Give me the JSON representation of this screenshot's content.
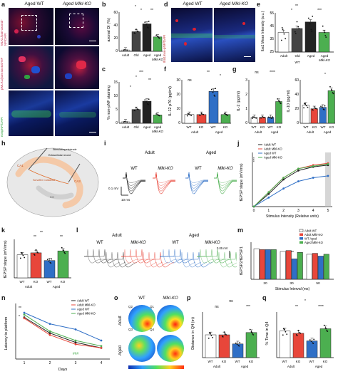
{
  "panel_letters": [
    "a",
    "b",
    "c",
    "d",
    "e",
    "f",
    "g",
    "h",
    "i",
    "j",
    "k",
    "l",
    "m",
    "n",
    "o",
    "p",
    "q"
  ],
  "a": {
    "col1": "Aged WT",
    "col2": "Aged Mlkl-KO",
    "row1_label": "MLKL/pan-axonal-NF/DAPI",
    "row2_label": "pMLKL/pan-axonal-NF",
    "row3_label": "nonpNF/DAPI"
  },
  "d": {
    "col1": "Aged WT",
    "col2": "Aged Mlkl-KO",
    "row_label": "Iba1/non-pNF/DAPI"
  },
  "group_ticks": [
    "Adult",
    "Old",
    "Aged",
    "Aged"
  ],
  "group_sub": "Mlkl-KO",
  "wt_ko": [
    "WT",
    "KO"
  ],
  "adult_aged": [
    "Adult",
    "Aged"
  ],
  "b": {
    "ylabel": "axonal DI (%)",
    "yticks": [
      "0",
      "20",
      "40",
      "60"
    ],
    "stars": [
      "*",
      "*",
      "**"
    ]
  },
  "c": {
    "ylabel": "% non-pNF staining",
    "yticks": [
      "0",
      "5",
      "10",
      "15"
    ],
    "stars": [
      "***",
      "*",
      "**",
      "*"
    ]
  },
  "e": {
    "ylabel": "Iba1 Mean Intensity (a.u.)",
    "yticks": [
      "25",
      "35",
      "45",
      "55"
    ],
    "stars": [
      "**",
      "*",
      "***"
    ],
    "wt": "WT"
  },
  "f": {
    "ylabel": "IL-12 p70 (pg/ml)",
    "yticks": [
      "0",
      "10",
      "20",
      "30"
    ],
    "stars": [
      "**",
      "*"
    ],
    "ns": "ns"
  },
  "g": {
    "ylabel": "IL-2 (pg/ml)",
    "yticks": [
      "0",
      "1",
      "2",
      "3"
    ],
    "stars": [
      "****"
    ],
    "ns": "ns",
    "ylabel2": "IL-10 (pg/ml)",
    "yticks2": [
      "0",
      "20",
      "40",
      "60"
    ],
    "stars2": [
      "*"
    ]
  },
  "h": {
    "stim_label": "Stimulating electrode",
    "rec_label": "Extracellular record",
    "ca1": "CA1",
    "ca3": "CA3",
    "schaffer": "Schaffer Collateral",
    "dg": "DG"
  },
  "i": {
    "group_adult": "Adult",
    "group_aged": "Aged",
    "wt": "WT",
    "ko": "Mlkl-KO",
    "scale_v": "0.1 mV",
    "scale_t": "10 ms"
  },
  "j": {
    "ylabel": "fEPSP slope (mV/ms)",
    "xlabel": "Stimulus Intensity (Relative units)",
    "legend": [
      "Adult WT",
      "Adult Mlkl-KO",
      "Aged WT",
      "Aged Mlkl-KO"
    ],
    "stars": "****"
  },
  "k": {
    "ylabel": "fEPSP slope (mV/ms)",
    "stars": [
      "**",
      "**",
      "**"
    ]
  },
  "l": {
    "group_adult": "Adult",
    "group_aged": "Aged",
    "wt": "WT",
    "ko": "Mlkl-KO",
    "scale": "0.05 mV"
  },
  "m": {
    "ylabel": "fEPSP2/fEPSP1",
    "xlabel": "Stimulus Interval (ms)",
    "legend": [
      "Adult WT",
      "Adult Mlkl-KO",
      "WT Aged",
      "Aged Mlkl-KO"
    ],
    "xticks": [
      "20",
      "30",
      "50"
    ],
    "stars": [
      "**"
    ]
  },
  "n": {
    "ylabel": "Latency to platform",
    "xlabel": "Days",
    "xticks": [
      "1",
      "2",
      "3",
      "4"
    ],
    "legend": [
      "Adult WT",
      "Adult Mlkl-KO",
      "Aged WT",
      "Aged Mlkl-KO"
    ],
    "stars": [
      "**",
      "*"
    ],
    "hashes": "###"
  },
  "o": {
    "col1": "WT",
    "col2": "Mlkl-KO",
    "row1": "Adult",
    "row2": "Aged",
    "quads": [
      "Q2",
      "Q1",
      "Q3",
      "Q4"
    ]
  },
  "p": {
    "ylabel": "Distance in Q4 (m)",
    "stars": [
      "ns",
      "***",
      "ns"
    ]
  },
  "q": {
    "ylabel": "% Time in Q4",
    "stars": [
      "*",
      "**",
      "****"
    ]
  },
  "colors": {
    "adult_wt": "#ffffff",
    "adult_ko": "#e8463a",
    "aged_wt": "#2f6fc6",
    "aged_ko": "#4caf50",
    "old": "#444444",
    "aged_black": "#222222"
  },
  "chart_data": [
    {
      "panel": "b",
      "type": "bar",
      "categories": [
        "Adult",
        "Old",
        "Aged",
        "Aged Mlkl-KO"
      ],
      "values": [
        2,
        30,
        42,
        22
      ],
      "ylabel": "axonal DI (%)",
      "ylim": [
        0,
        60
      ]
    },
    {
      "panel": "c",
      "type": "bar",
      "categories": [
        "Adult",
        "Old",
        "Aged",
        "Aged Mlkl-KO"
      ],
      "values": [
        0.5,
        5,
        8,
        3
      ],
      "ylabel": "% non-pNF staining",
      "ylim": [
        0,
        15
      ]
    },
    {
      "panel": "e",
      "type": "bar",
      "categories": [
        "Adult",
        "Old",
        "Aged",
        "Aged Mlkl-KO"
      ],
      "values": [
        40,
        43,
        48,
        40
      ],
      "ylabel": "Iba1 Mean Intensity (a.u.)",
      "ylim": [
        25,
        55
      ]
    },
    {
      "panel": "f",
      "type": "bar",
      "categories": [
        "WT",
        "KO",
        "WT",
        "KO"
      ],
      "values": [
        6,
        6,
        22,
        6
      ],
      "ylabel": "IL-12 p70 (pg/ml)",
      "ylim": [
        0,
        30
      ]
    },
    {
      "panel": "g1",
      "type": "bar",
      "categories": [
        "WT",
        "KO",
        "WT",
        "KO"
      ],
      "values": [
        0.4,
        0.4,
        0.4,
        1.5
      ],
      "ylabel": "IL-2 (pg/ml)",
      "ylim": [
        0,
        3
      ]
    },
    {
      "panel": "g2",
      "type": "bar",
      "categories": [
        "WT",
        "KO",
        "WT",
        "KO"
      ],
      "values": [
        25,
        20,
        22,
        45
      ],
      "ylabel": "IL-10 (pg/ml)",
      "ylim": [
        0,
        60
      ]
    },
    {
      "panel": "j",
      "type": "line",
      "x": [
        0,
        1,
        2,
        3,
        4,
        5
      ],
      "ylabel": "fEPSP slope (mV/ms)",
      "xlabel": "Stimulus Intensity (Relative units)",
      "ylim": [
        0,
        1.5
      ],
      "series": [
        {
          "name": "Adult WT",
          "values": [
            0,
            0.35,
            0.75,
            1.0,
            1.1,
            1.15
          ]
        },
        {
          "name": "Adult Mlkl-KO",
          "values": [
            0,
            0.4,
            0.8,
            1.05,
            1.15,
            1.2
          ]
        },
        {
          "name": "Aged WT",
          "values": [
            0,
            0.25,
            0.5,
            0.7,
            0.8,
            0.85
          ]
        },
        {
          "name": "Aged Mlkl-KO",
          "values": [
            0,
            0.4,
            0.8,
            1.05,
            1.12,
            1.18
          ]
        }
      ]
    },
    {
      "panel": "k",
      "type": "bar",
      "categories": [
        "WT",
        "KO",
        "WT",
        "KO"
      ],
      "values": [
        0.12,
        0.13,
        0.09,
        0.14
      ],
      "ylabel": "fEPSP slope (mV/ms)",
      "ylim": [
        0,
        0.2
      ]
    },
    {
      "panel": "m",
      "type": "bar",
      "categories": [
        "20",
        "30",
        "50"
      ],
      "ylabel": "fEPSP2/fEPSP1",
      "xlabel": "Stimulus Interval (ms)",
      "ylim": [
        0,
        2.0
      ],
      "series": [
        {
          "name": "Adult WT",
          "values": [
            1.65,
            1.5,
            1.35
          ]
        },
        {
          "name": "Adult Mlkl-KO",
          "values": [
            1.6,
            1.55,
            1.4
          ]
        },
        {
          "name": "WT Aged",
          "values": [
            1.6,
            1.1,
            1.25
          ]
        },
        {
          "name": "Aged Mlkl-KO",
          "values": [
            1.6,
            1.45,
            1.35
          ]
        }
      ]
    },
    {
      "panel": "n",
      "type": "line",
      "x": [
        1,
        2,
        3,
        4
      ],
      "ylabel": "Latency to platform",
      "xlabel": "Days",
      "ylim": [
        0,
        60
      ],
      "series": [
        {
          "name": "Adult WT",
          "values": [
            45,
            28,
            18,
            12
          ]
        },
        {
          "name": "Adult Mlkl-KO",
          "values": [
            44,
            26,
            16,
            12
          ]
        },
        {
          "name": "Aged WT",
          "values": [
            50,
            38,
            32,
            20
          ]
        },
        {
          "name": "Aged Mlkl-KO",
          "values": [
            48,
            30,
            20,
            14
          ]
        }
      ]
    },
    {
      "panel": "p",
      "type": "bar",
      "categories": [
        "WT",
        "KO",
        "WT",
        "KO"
      ],
      "values": [
        2.0,
        2.0,
        1.2,
        2.2
      ],
      "ylabel": "Distance in Q4 (m)",
      "ylim": [
        0,
        4
      ]
    },
    {
      "panel": "q",
      "type": "bar",
      "categories": [
        "WT",
        "KO",
        "WT",
        "KO"
      ],
      "values": [
        35,
        32,
        22,
        38
      ],
      "ylabel": "% Time in Q4",
      "ylim": [
        0,
        60
      ]
    }
  ]
}
